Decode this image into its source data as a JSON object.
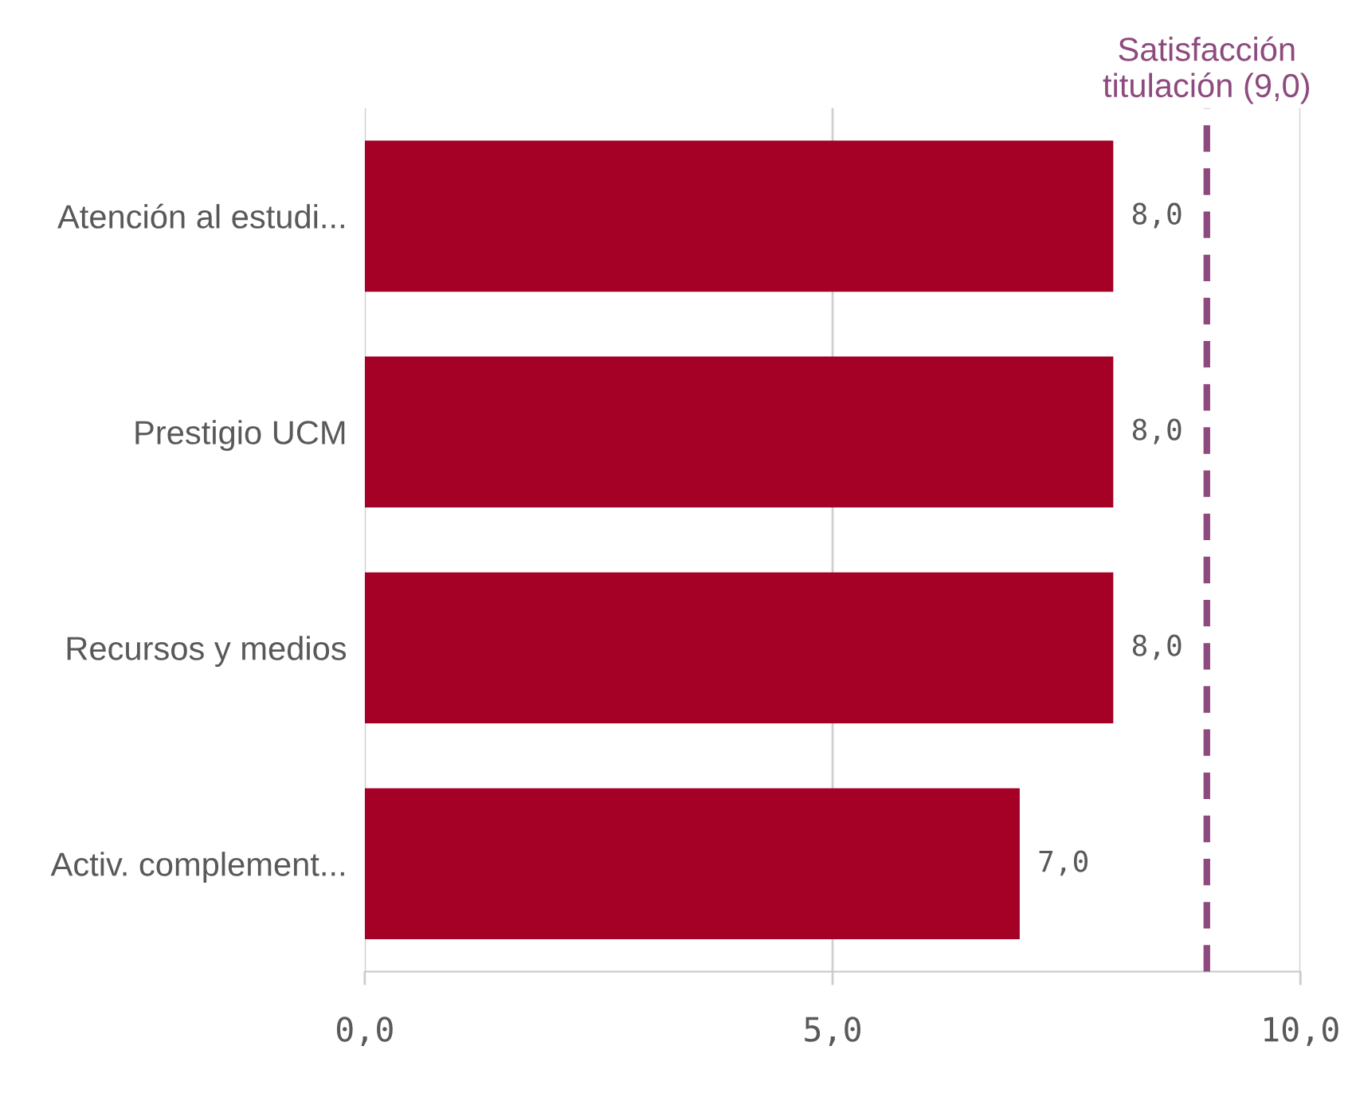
{
  "chart_data": {
    "type": "bar",
    "orientation": "horizontal",
    "categories": [
      "Atención al estudi...",
      "Prestigio UCM",
      "Recursos y medios",
      "Activ. complement..."
    ],
    "values": [
      8.0,
      8.0,
      8.0,
      7.0
    ],
    "value_labels": [
      "8,0",
      "8,0",
      "8,0",
      "7,0"
    ],
    "color": "#a50026",
    "xlim": [
      0,
      10
    ],
    "xticks": [
      {
        "value": 0,
        "label": "0,0"
      },
      {
        "value": 5,
        "label": "5,0"
      },
      {
        "value": 10,
        "label": "10,0"
      }
    ],
    "grid": "x",
    "ref_lines": [
      {
        "axis": "x",
        "value": 9.0,
        "label": "Satisfacción\ntitulación (9,0)",
        "color": "#8e4a7e",
        "line_style": "dashed"
      }
    ]
  }
}
